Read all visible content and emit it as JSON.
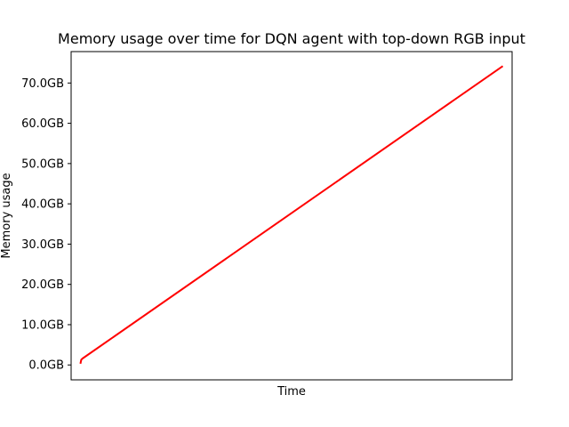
{
  "chart_data": {
    "type": "line",
    "title": "Memory usage over time for DQN agent with top-down RGB input",
    "xlabel": "Time",
    "ylabel": "Memory usage",
    "x_ticks": [],
    "yticks": [
      0,
      10,
      20,
      30,
      40,
      50,
      60,
      70
    ],
    "ytick_labels": [
      "0.0GB",
      "10.0GB",
      "20.0GB",
      "30.0GB",
      "40.0GB",
      "50.0GB",
      "60.0GB",
      "70.0GB"
    ],
    "ylim": [
      -3.7,
      77.8
    ],
    "xlim": [
      -0.022,
      1.022
    ],
    "grid": false,
    "legend": false,
    "series": [
      {
        "color": "#ff0000",
        "x": [
          0,
          0.002,
          0.005,
          1
        ],
        "y": [
          0.3,
          1.3,
          1.6,
          74.2
        ]
      }
    ]
  }
}
